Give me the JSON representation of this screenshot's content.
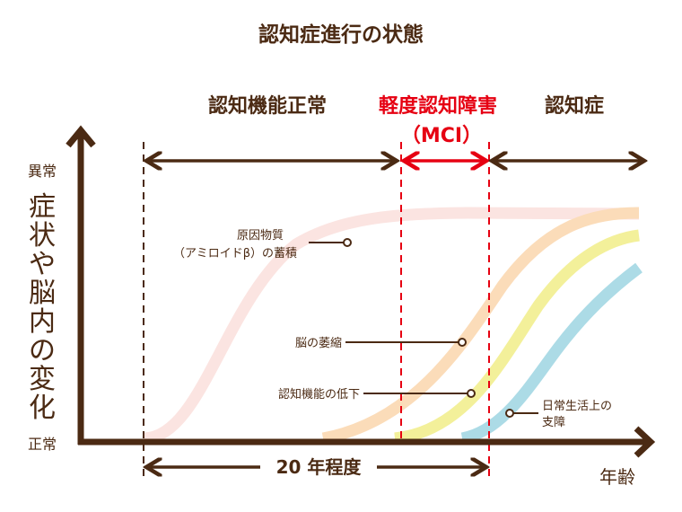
{
  "title": "認知症進行の状態",
  "stages": {
    "normal": "認知機能正常",
    "mci": "軽度認知障害",
    "mci_abbr": "（MCI）",
    "dementia": "認知症"
  },
  "y_axis": {
    "top": "異常",
    "bottom": "正常",
    "label": [
      "症",
      "状",
      "や",
      "脳",
      "内",
      "の",
      "変",
      "化"
    ]
  },
  "x_axis": {
    "label": "年齢",
    "duration": "20 年程度"
  },
  "annotations": {
    "amyloid_1": "原因物質",
    "amyloid_2": "（アミロイドβ）の蓄積",
    "atrophy": "脳の萎縮",
    "cognitive": "認知機能の低下",
    "daily_1": "日常生活上の",
    "daily_2": "支障"
  },
  "colors": {
    "axis": "#4b2a13",
    "mci": "#e60012",
    "amyloid": "#fbe4e1",
    "atrophy": "#fbdcb9",
    "cognitive": "#f3f09a",
    "daily": "#acdbe6"
  }
}
